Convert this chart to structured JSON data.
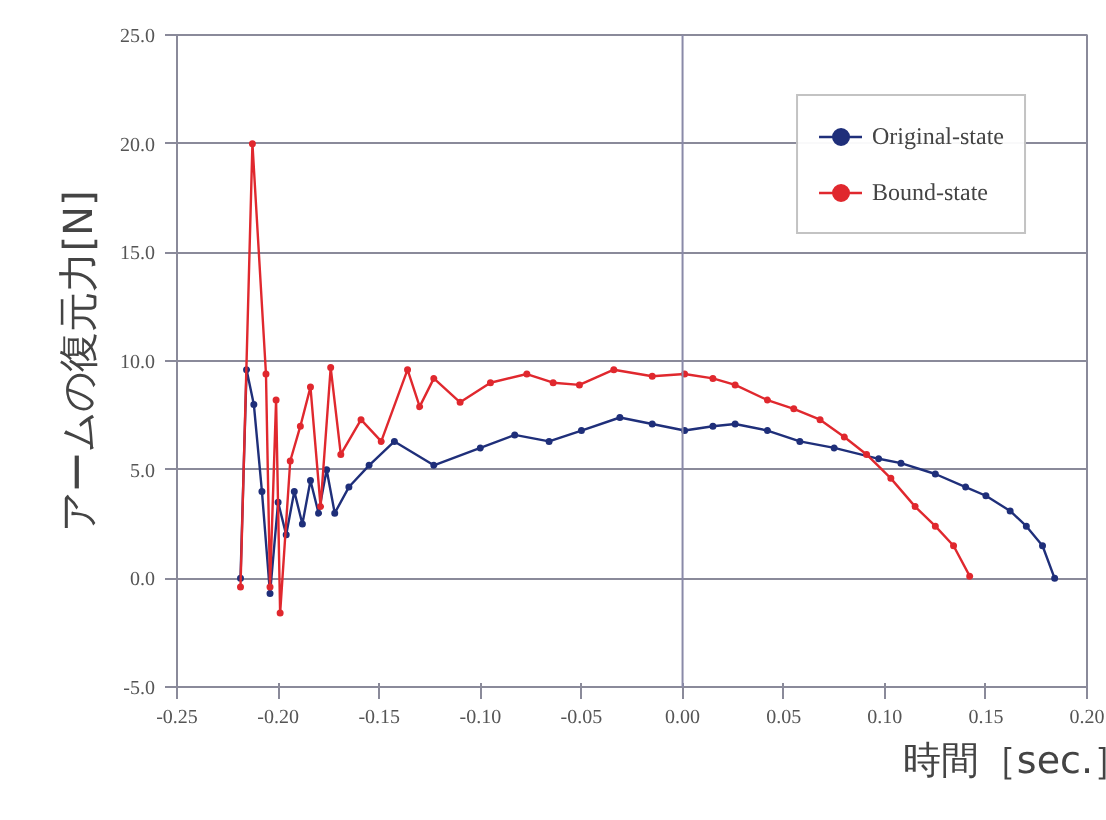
{
  "chart_data": {
    "type": "line",
    "xlabel": "時間［sec.］",
    "ylabel": "アームの復元力[N]",
    "xlim": [
      -0.25,
      0.2
    ],
    "ylim": [
      -5,
      25
    ],
    "xticks": [
      {
        "value": -0.25,
        "label": "-0.25"
      },
      {
        "value": -0.2,
        "label": "-0.20"
      },
      {
        "value": -0.15,
        "label": "-0.15"
      },
      {
        "value": -0.1,
        "label": "-0.10"
      },
      {
        "value": -0.05,
        "label": "-0.05"
      },
      {
        "value": 0,
        "label": "0.00"
      },
      {
        "value": 0.05,
        "label": "0.05"
      },
      {
        "value": 0.1,
        "label": "0.10"
      },
      {
        "value": 0.15,
        "label": "0.15"
      },
      {
        "value": 0.2,
        "label": "0.20"
      }
    ],
    "yticks": [
      {
        "value": -5,
        "label": "-5.0"
      },
      {
        "value": 0,
        "label": "0.0"
      },
      {
        "value": 5,
        "label": "5.0"
      },
      {
        "value": 10,
        "label": "10.0"
      },
      {
        "value": 15,
        "label": "15.0"
      },
      {
        "value": 20,
        "label": "20.0"
      },
      {
        "value": 25,
        "label": "25.0"
      }
    ],
    "grid": "y",
    "legend": "top right",
    "marker": "circle",
    "line_style": "solid",
    "ref_lines": [
      {
        "axis": "x",
        "value": 0,
        "color": "#8a8aa8"
      }
    ],
    "series": [
      {
        "name": "Original-state",
        "color": "#1f2f7a",
        "x": [
          -0.2186,
          -0.2156,
          -0.212,
          -0.208,
          -0.204,
          -0.2,
          -0.196,
          -0.192,
          -0.188,
          -0.184,
          -0.18,
          -0.176,
          -0.172,
          -0.165,
          -0.155,
          -0.1425,
          -0.123,
          -0.1,
          -0.083,
          -0.066,
          -0.05,
          -0.031,
          -0.015,
          0.001,
          0.015,
          0.026,
          0.042,
          0.058,
          0.075,
          0.097,
          0.108,
          0.125,
          0.14,
          0.15,
          0.162,
          0.17,
          0.178,
          0.184
        ],
        "values": [
          0.0,
          9.6,
          8.0,
          4.0,
          -0.7,
          3.5,
          2.0,
          4.0,
          2.5,
          4.5,
          3.0,
          5.0,
          3.0,
          4.2,
          5.2,
          6.3,
          5.2,
          6.0,
          6.6,
          6.3,
          6.8,
          7.4,
          7.1,
          6.8,
          7.0,
          7.1,
          6.8,
          6.3,
          6.0,
          5.5,
          5.3,
          4.8,
          4.2,
          3.8,
          3.1,
          2.4,
          1.5,
          0.0
        ]
      },
      {
        "name": "Bound-state",
        "color": "#e0282e",
        "x": [
          -0.2186,
          -0.2127,
          -0.206,
          -0.204,
          -0.201,
          -0.199,
          -0.194,
          -0.189,
          -0.184,
          -0.179,
          -0.174,
          -0.169,
          -0.159,
          -0.149,
          -0.136,
          -0.13,
          -0.123,
          -0.11,
          -0.095,
          -0.077,
          -0.064,
          -0.051,
          -0.034,
          -0.015,
          0.001,
          0.015,
          0.026,
          0.042,
          0.055,
          0.068,
          0.08,
          0.091,
          0.103,
          0.115,
          0.125,
          0.134,
          0.142
        ],
        "values": [
          -0.4,
          20.0,
          9.4,
          -0.4,
          8.2,
          -1.6,
          5.4,
          7.0,
          8.8,
          3.3,
          9.7,
          5.7,
          7.3,
          6.3,
          9.6,
          7.9,
          9.2,
          8.1,
          9.0,
          9.4,
          9.0,
          8.9,
          9.6,
          9.3,
          9.4,
          9.2,
          8.9,
          8.2,
          7.8,
          7.3,
          6.5,
          5.7,
          4.6,
          3.3,
          2.4,
          1.5,
          0.1
        ]
      }
    ]
  }
}
